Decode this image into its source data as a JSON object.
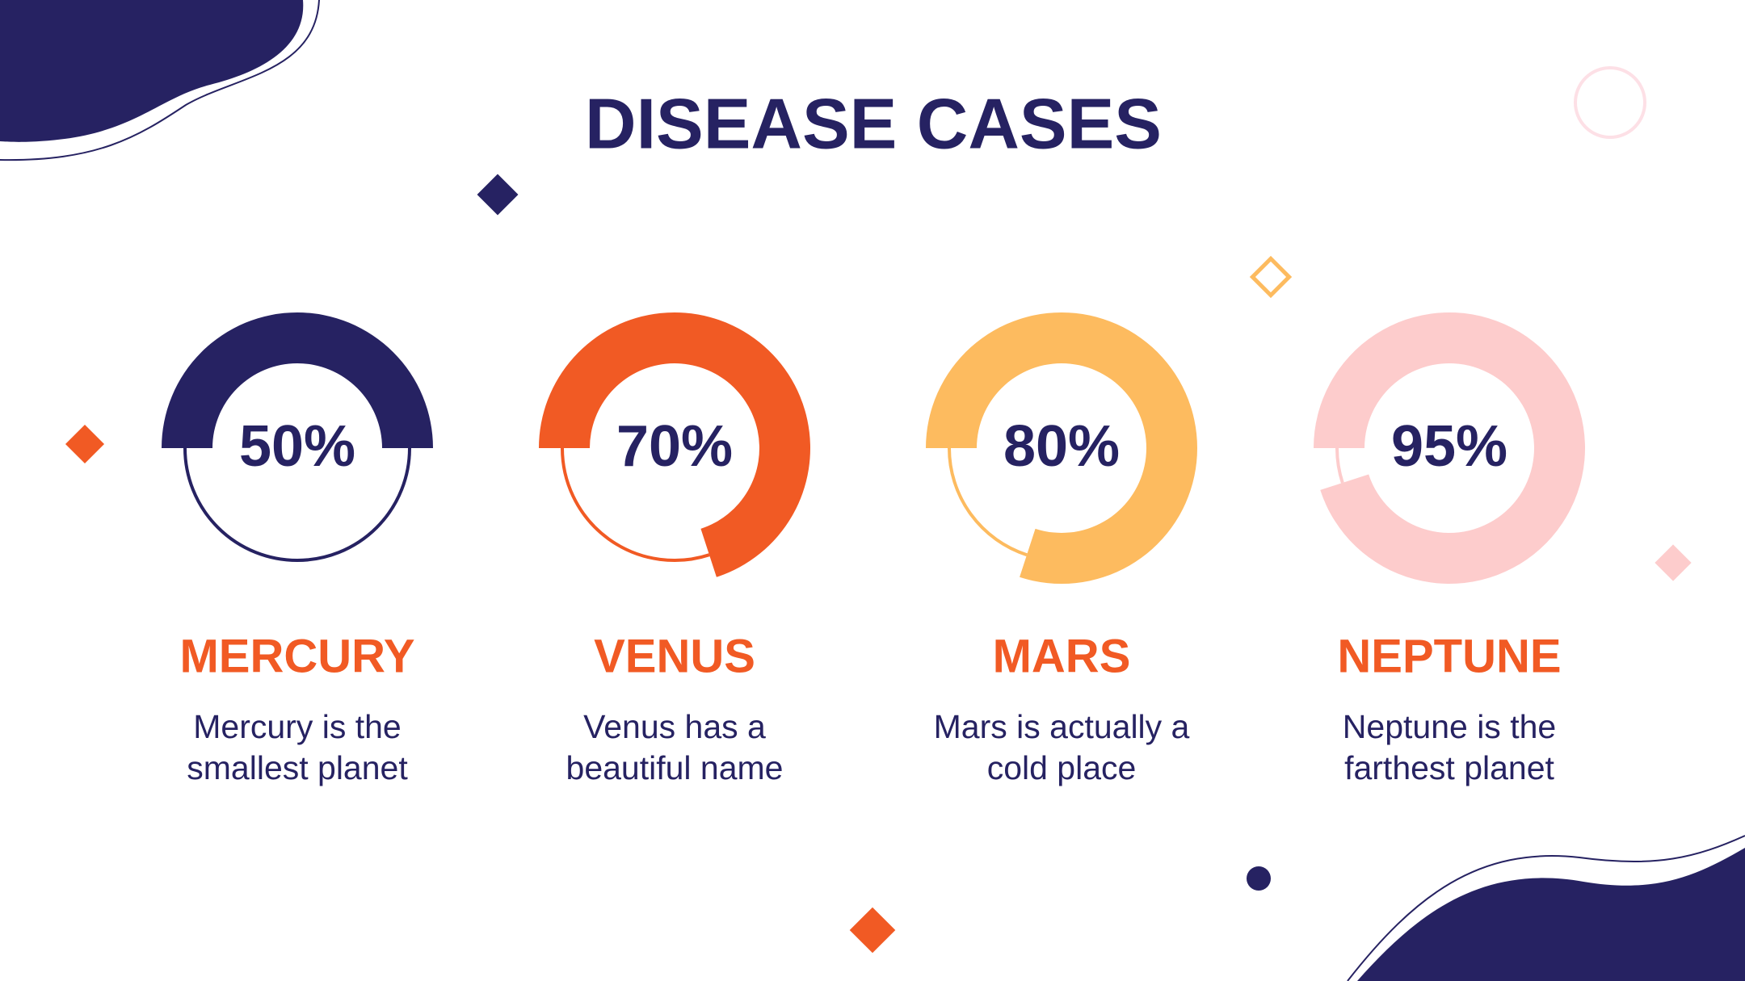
{
  "title": "DISEASE CASES",
  "chart_data": [
    {
      "type": "donut",
      "title": "MERCURY",
      "subtitle": "Mercury is the smallest planet",
      "values": [
        50
      ],
      "value_labels": [
        "50%"
      ],
      "color": "#262262"
    },
    {
      "type": "donut",
      "title": "VENUS",
      "subtitle": "Venus has a beautiful name",
      "values": [
        70
      ],
      "value_labels": [
        "70%"
      ],
      "color": "#f15a24"
    },
    {
      "type": "donut",
      "title": "MARS",
      "subtitle": "Mars is actually a cold place",
      "values": [
        80
      ],
      "value_labels": [
        "80%"
      ],
      "color": "#fdbb5f"
    },
    {
      "type": "donut",
      "title": "NEPTUNE",
      "subtitle": "Neptune is the farthest planet",
      "values": [
        95
      ],
      "value_labels": [
        "95%"
      ],
      "color": "#fdcccc"
    }
  ]
}
